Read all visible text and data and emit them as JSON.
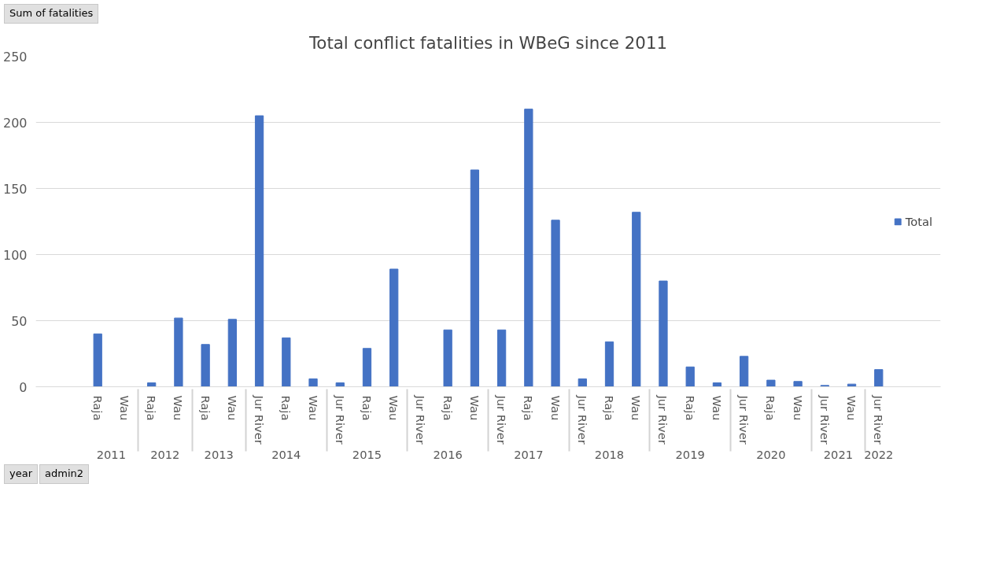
{
  "chart_data": {
    "type": "bar",
    "title": "Total conflict fatalities in WBeG since 2011",
    "categories": [
      "Raja",
      "Wau",
      "Raja",
      "Wau",
      "Raja",
      "Wau",
      "Jur River",
      "Raja",
      "Wau",
      "Jur River",
      "Raja",
      "Wau",
      "Jur River",
      "Raja",
      "Wau",
      "Jur River",
      "Raja",
      "Wau",
      "Jur River",
      "Raja",
      "Wau",
      "Jur River",
      "Raja",
      "Wau",
      "Jur River",
      "Raja",
      "Wau",
      "Jur River",
      "Wau",
      "Jur River"
    ],
    "series": [
      {
        "name": "Total",
        "color": "#4472c4",
        "values": [
          40,
          0,
          3,
          52,
          32,
          51,
          205,
          37,
          6,
          3,
          29,
          89,
          0,
          43,
          164,
          43,
          210,
          126,
          6,
          34,
          132,
          80,
          15,
          3,
          23,
          5,
          4,
          1,
          2,
          13
        ]
      }
    ],
    "annotations": [
      "Sum of fatalities",
      "2011",
      "2012",
      "2013",
      "2014",
      "2015",
      "2016",
      "2017",
      "2018",
      "2019",
      "2020",
      "2021",
      "2022",
      "year",
      "admin2"
    ],
    "ylim": [
      0,
      250
    ],
    "yticks": [
      0,
      50,
      100,
      150,
      200,
      250
    ],
    "grid": "y",
    "legend": "right"
  }
}
